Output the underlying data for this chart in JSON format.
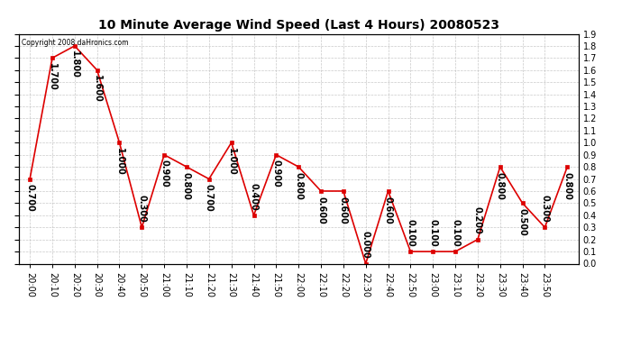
{
  "title": "10 Minute Average Wind Speed (Last 4 Hours) 20080523",
  "copyright": "Copyright 2008 daHronics.com",
  "x_labels": [
    "20:00",
    "20:10",
    "20:20",
    "20:30",
    "20:40",
    "20:50",
    "21:00",
    "21:10",
    "21:20",
    "21:30",
    "21:40",
    "21:50",
    "22:00",
    "22:10",
    "22:20",
    "22:30",
    "22:40",
    "22:50",
    "23:00",
    "23:10",
    "23:20",
    "23:30",
    "23:40",
    "23:50"
  ],
  "y_values": [
    0.7,
    1.7,
    1.8,
    1.6,
    1.0,
    0.3,
    0.9,
    0.8,
    0.7,
    1.0,
    0.4,
    0.9,
    0.8,
    0.6,
    0.6,
    0.0,
    0.6,
    0.1,
    0.1,
    0.1,
    0.2,
    0.8,
    0.5,
    0.3,
    0.8
  ],
  "line_color": "#dd0000",
  "marker_color": "#dd0000",
  "bg_color": "#ffffff",
  "grid_color": "#bbbbbb",
  "ylim": [
    0.0,
    1.9
  ],
  "yticks_right": [
    0.0,
    0.1,
    0.2,
    0.3,
    0.4,
    0.5,
    0.6,
    0.7,
    0.8,
    0.9,
    1.0,
    1.1,
    1.2,
    1.3,
    1.4,
    1.5,
    1.6,
    1.7,
    1.8,
    1.9
  ],
  "title_fontsize": 10,
  "label_fontsize": 7,
  "annot_fontsize": 7
}
